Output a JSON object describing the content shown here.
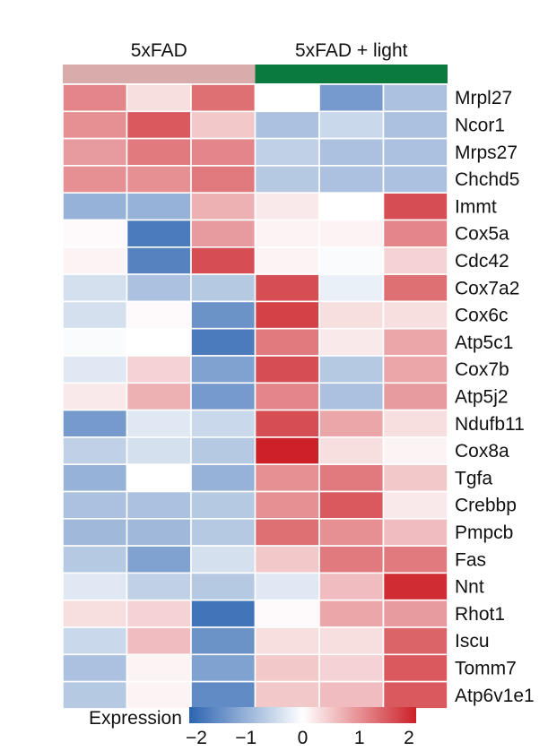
{
  "chart_data": {
    "type": "heatmap",
    "groups": [
      {
        "name": "5xFAD",
        "color": "#d9acac",
        "columns": 3
      },
      {
        "name": "5xFAD + light",
        "color": "#0a7a3e",
        "columns": 3
      }
    ],
    "rows": [
      "Mrpl27",
      "Ncor1",
      "Mrps27",
      "Chchd5",
      "Immt",
      "Cox5a",
      "Cdc42",
      "Cox7a2",
      "Cox6c",
      "Atp5c1",
      "Cox7b",
      "Atp5j2",
      "Ndufb11",
      "Cox8a",
      "Tgfa",
      "Crebbp",
      "Pmpcb",
      "Fas",
      "Nnt",
      "Rhot1",
      "Iscu",
      "Tomm7",
      "Atp6v1e1"
    ],
    "values": [
      [
        1.1,
        0.3,
        1.3,
        0.0,
        -1.3,
        -0.8
      ],
      [
        1.0,
        1.5,
        0.5,
        -0.8,
        -0.5,
        -0.8
      ],
      [
        0.9,
        1.2,
        1.1,
        -0.6,
        -0.8,
        -0.8
      ],
      [
        1.0,
        1.0,
        1.2,
        -0.7,
        -0.8,
        -0.8
      ],
      [
        -1.0,
        -1.0,
        0.7,
        0.2,
        0.0,
        1.6
      ],
      [
        0.05,
        -1.7,
        0.9,
        0.1,
        0.1,
        1.1
      ],
      [
        0.1,
        -1.6,
        1.6,
        0.1,
        -0.05,
        0.4
      ],
      [
        -0.4,
        -0.8,
        -0.7,
        1.6,
        -0.2,
        1.3
      ],
      [
        -0.4,
        0.05,
        -1.4,
        1.7,
        0.3,
        0.3
      ],
      [
        -0.05,
        0.0,
        -1.7,
        1.2,
        0.2,
        0.8
      ],
      [
        -0.3,
        0.4,
        -1.2,
        1.6,
        -0.7,
        0.8
      ],
      [
        0.2,
        0.7,
        -1.3,
        1.1,
        -0.8,
        0.9
      ],
      [
        -1.3,
        -0.3,
        -0.5,
        1.6,
        0.8,
        0.3
      ],
      [
        -0.6,
        -0.4,
        -0.7,
        2.0,
        0.3,
        0.1
      ],
      [
        -1.0,
        0.0,
        -1.0,
        1.0,
        1.2,
        0.5
      ],
      [
        -0.8,
        -0.8,
        -0.7,
        1.0,
        1.5,
        0.2
      ],
      [
        -0.9,
        -0.9,
        -0.7,
        1.3,
        1.0,
        0.6
      ],
      [
        -0.7,
        -1.2,
        -0.4,
        0.5,
        1.2,
        1.2
      ],
      [
        -0.3,
        -0.6,
        -0.7,
        -0.3,
        0.6,
        1.9
      ],
      [
        0.3,
        0.4,
        -1.8,
        0.05,
        0.8,
        0.9
      ],
      [
        -0.5,
        0.6,
        -1.4,
        0.3,
        0.3,
        1.4
      ],
      [
        -0.8,
        0.1,
        -1.2,
        0.5,
        0.4,
        1.5
      ],
      [
        -0.7,
        0.1,
        -1.5,
        0.5,
        0.6,
        1.5
      ]
    ],
    "colorbar": {
      "title": "Expression",
      "range": [
        -2,
        2
      ],
      "ticks": [
        -2,
        -1,
        0,
        1,
        2
      ],
      "tick_labels": [
        "−2",
        "−1",
        "0",
        "1",
        "2"
      ],
      "colors": {
        "low": "#2c64b0",
        "mid": "#ffffff",
        "high": "#cc2128"
      }
    }
  }
}
